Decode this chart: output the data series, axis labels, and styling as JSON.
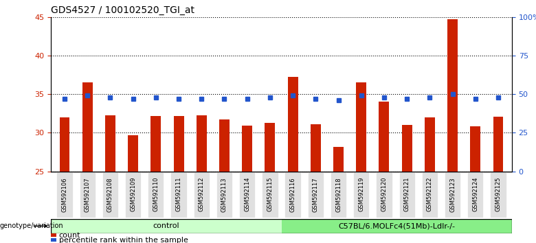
{
  "title": "GDS4527 / 100102520_TGI_at",
  "samples": [
    "GSM592106",
    "GSM592107",
    "GSM592108",
    "GSM592109",
    "GSM592110",
    "GSM592111",
    "GSM592112",
    "GSM592113",
    "GSM592114",
    "GSM592115",
    "GSM592116",
    "GSM592117",
    "GSM592118",
    "GSM592119",
    "GSM592120",
    "GSM592121",
    "GSM592122",
    "GSM592123",
    "GSM592124",
    "GSM592125"
  ],
  "count_values": [
    32.0,
    36.5,
    32.3,
    29.7,
    32.2,
    32.2,
    32.3,
    31.7,
    30.9,
    31.3,
    37.2,
    31.1,
    28.2,
    36.5,
    34.0,
    31.0,
    32.0,
    44.7,
    30.8,
    32.1
  ],
  "percentile_values": [
    47,
    49,
    48,
    47,
    48,
    47,
    47,
    47,
    47,
    48,
    49,
    47,
    46,
    49,
    48,
    47,
    48,
    50,
    47,
    48
  ],
  "ylim_left": [
    25,
    45
  ],
  "ylim_right": [
    0,
    100
  ],
  "yticks_left": [
    25,
    30,
    35,
    40,
    45
  ],
  "yticks_right": [
    0,
    25,
    50,
    75,
    100
  ],
  "ytick_labels_right": [
    "0",
    "25",
    "50",
    "75",
    "100%"
  ],
  "bar_color": "#cc2200",
  "percentile_color": "#2255cc",
  "bar_bottom": 25,
  "control_label": "control",
  "treatment_label": "C57BL/6.MOLFc4(51Mb)-LdIr-/-",
  "control_color": "#ccffcc",
  "treatment_color": "#88ee88",
  "genotype_label": "genotype/variation",
  "control_count": 10,
  "treatment_count": 10,
  "legend_count_label": "count",
  "legend_percentile_label": "percentile rank within the sample",
  "background_color": "#ffffff",
  "grid_color": "#000000",
  "title_color": "#000000",
  "tick_label_color_left": "#cc2200",
  "tick_label_color_right": "#2255cc"
}
